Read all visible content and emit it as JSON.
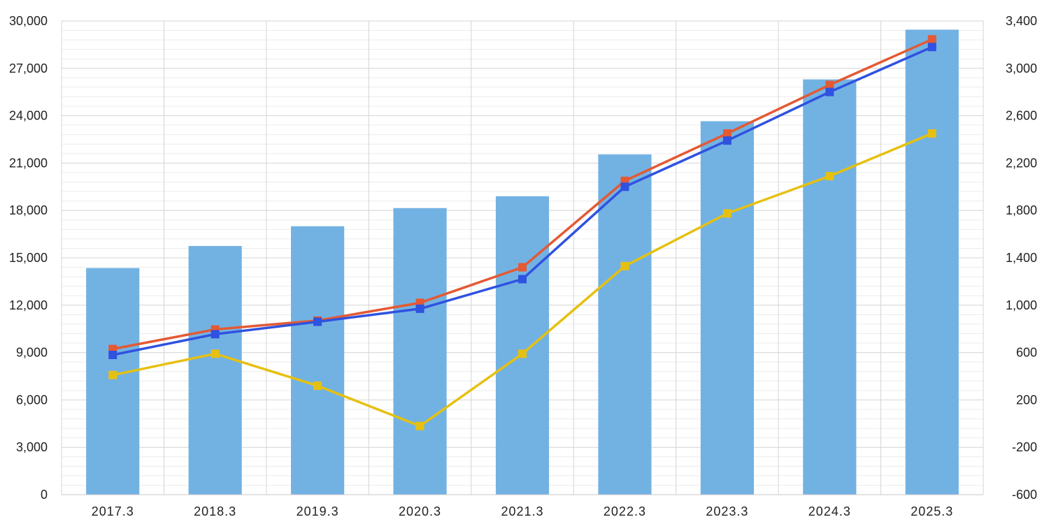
{
  "chart_data": {
    "type": "bar",
    "title": "",
    "categories": [
      "2017.3",
      "2018.3",
      "2019.3",
      "2020.3",
      "2021.3",
      "2022.3",
      "2023.3",
      "2024.3",
      "2025.3"
    ],
    "bar_series": {
      "axis": "left",
      "color": "#72b2e3",
      "values": [
        14350,
        15750,
        17000,
        18150,
        18900,
        21550,
        23650,
        26300,
        29450
      ]
    },
    "line_series": [
      {
        "axis": "right",
        "color": "#e35a34",
        "values": [
          630,
          795,
          870,
          1020,
          1320,
          2050,
          2450,
          2860,
          3245
        ]
      },
      {
        "axis": "right",
        "color": "#2f52e0",
        "values": [
          580,
          755,
          860,
          970,
          1220,
          2000,
          2390,
          2800,
          3180
        ]
      },
      {
        "axis": "right",
        "color": "#e6c011",
        "values": [
          410,
          590,
          320,
          -20,
          590,
          1330,
          1775,
          2090,
          2450
        ]
      }
    ],
    "y_left": {
      "min": 0,
      "max": 30000,
      "ticks": [
        "0",
        "3,000",
        "6,000",
        "9,000",
        "12,000",
        "15,000",
        "18,000",
        "21,000",
        "24,000",
        "27,000",
        "30,000"
      ]
    },
    "y_right": {
      "min": -600,
      "max": 3400,
      "ticks": [
        "-600",
        "-200",
        "200",
        "600",
        "1,000",
        "1,400",
        "1,800",
        "2,200",
        "2,600",
        "3,000",
        "3,400"
      ]
    },
    "grid": true,
    "legend": "none"
  }
}
